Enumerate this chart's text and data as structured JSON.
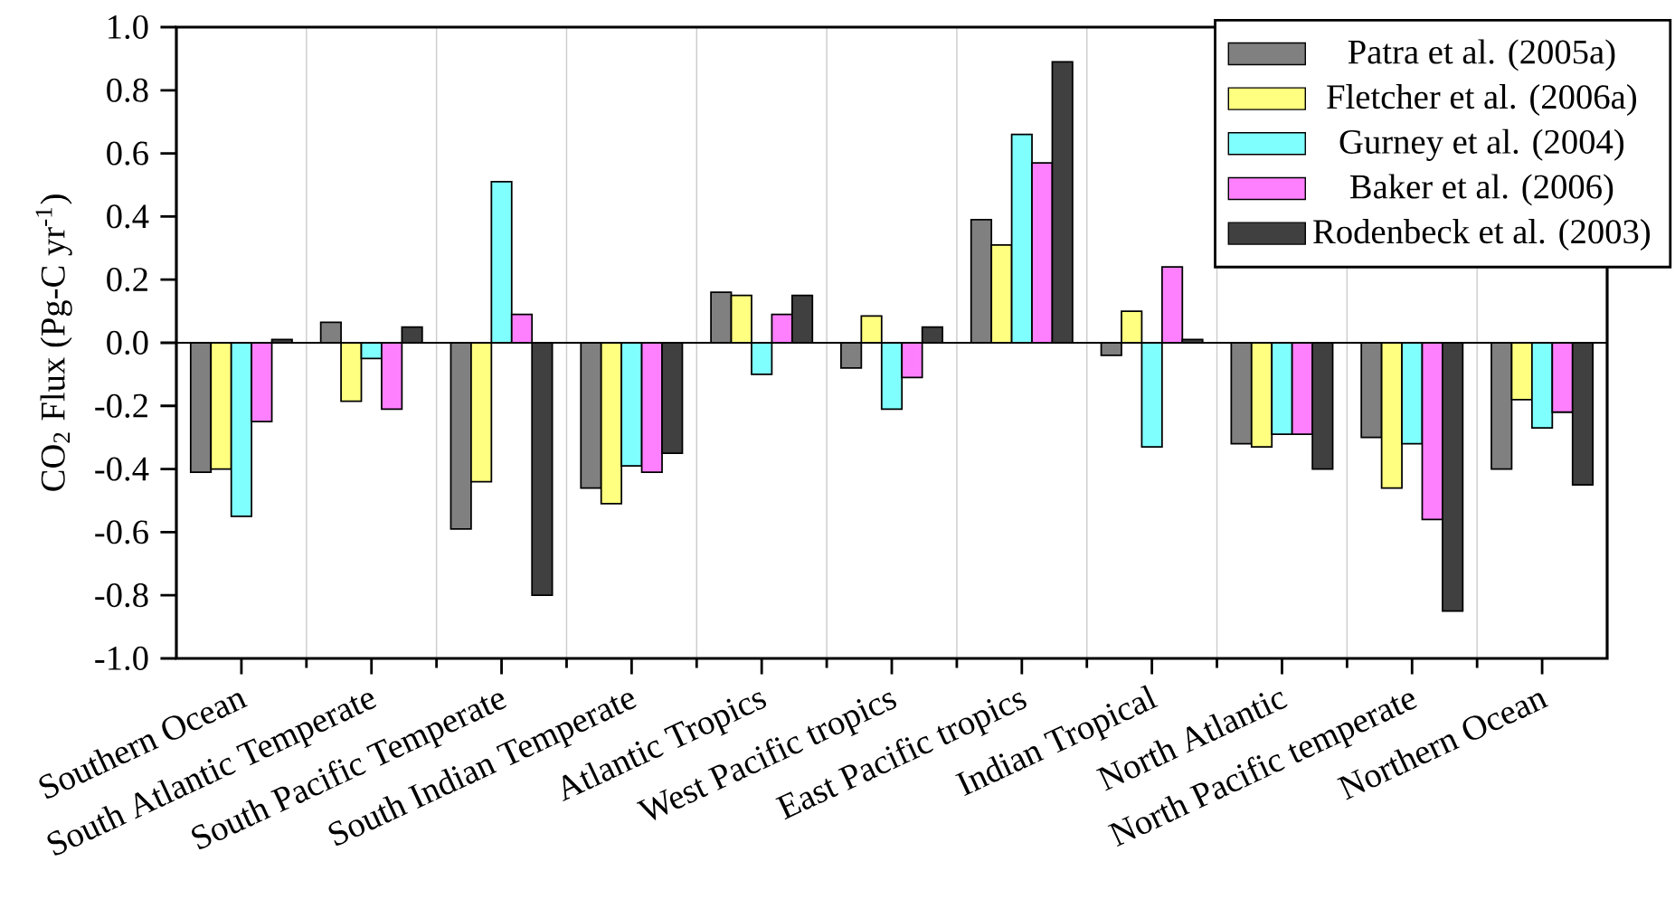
{
  "chart_data": {
    "type": "bar",
    "ylabel": "CO$_{2}$ Flux (Pg-C yr$^{-1}$)",
    "categories": [
      "Southern Ocean",
      "South Atlantic Temperate",
      "South Pacific Temperate",
      "South Indian Temperate",
      "Atlantic Tropics",
      "West Pacific tropics",
      "East Pacific tropics",
      "Indian Tropical",
      "North Atlantic",
      "North Pacific temperate",
      "Northern Ocean"
    ],
    "series": [
      {
        "name": "Patra et al. (2005a)",
        "color": "#808080",
        "values": [
          -0.41,
          0.065,
          -0.59,
          -0.46,
          0.16,
          -0.08,
          0.39,
          -0.04,
          -0.32,
          -0.3,
          -0.4
        ]
      },
      {
        "name": "Fletcher et al. (2006a)",
        "color": "#ffff80",
        "values": [
          -0.4,
          -0.185,
          -0.44,
          -0.51,
          0.15,
          0.085,
          0.31,
          0.1,
          -0.33,
          -0.46,
          -0.18
        ]
      },
      {
        "name": "Gurney et al. (2004)",
        "color": "#80ffff",
        "values": [
          -0.55,
          -0.05,
          0.51,
          -0.39,
          -0.1,
          -0.21,
          0.66,
          -0.33,
          -0.29,
          -0.32,
          -0.27
        ]
      },
      {
        "name": "Baker et al. (2006)",
        "color": "#ff80ff",
        "values": [
          -0.25,
          -0.21,
          0.09,
          -0.41,
          0.09,
          -0.11,
          0.57,
          0.24,
          -0.29,
          -0.56,
          -0.22
        ]
      },
      {
        "name": "Rodenbeck et al. (2003)",
        "color": "#404040",
        "values": [
          0.01,
          0.05,
          -0.8,
          -0.35,
          0.15,
          0.05,
          0.89,
          0.01,
          -0.4,
          -0.85,
          -0.45
        ]
      }
    ],
    "ylim": [
      -1.0,
      1.0
    ],
    "yticks": [
      {
        "value": -1.0,
        "label": "-1.0"
      },
      {
        "value": -0.8,
        "label": "-0.8"
      },
      {
        "value": -0.6,
        "label": "-0.6"
      },
      {
        "value": -0.4,
        "label": "-0.4"
      },
      {
        "value": -0.2,
        "label": "-0.2"
      },
      {
        "value": 0.0,
        "label": "0.0"
      },
      {
        "value": 0.2,
        "label": "0.2"
      },
      {
        "value": 0.4,
        "label": "0.4"
      },
      {
        "value": 0.6,
        "label": "0.6"
      },
      {
        "value": 0.8,
        "label": "0.8"
      },
      {
        "value": 1.0,
        "label": "1.0"
      }
    ],
    "ref_lines": [
      {
        "axis": "y",
        "value": 0.0,
        "color": "#000000"
      }
    ],
    "grid": "x",
    "legend": "top right"
  }
}
